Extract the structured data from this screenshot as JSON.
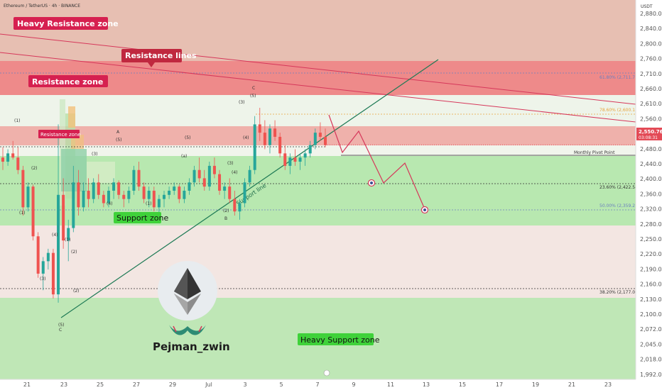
{
  "header": {
    "symbol": "Ethereum / TetherUS · 4h · BINANCE",
    "currency": "USDT"
  },
  "price_axis": {
    "ticks": [
      "2,880.00",
      "2,840.00",
      "2,800.00",
      "2,760.00",
      "2,710.00",
      "2,660.00",
      "2,610.00",
      "2,560.00",
      "2,520.00",
      "2,480.00",
      "2,440.00",
      "2,400.00",
      "2,360.00",
      "2,320.00",
      "2,280.00",
      "2,250.00",
      "2,220.00",
      "2,190.00",
      "2,160.00",
      "2,130.00",
      "2,100.00",
      "2,072.00",
      "2,045.00",
      "2,018.00",
      "1,992.00"
    ],
    "current_price": "2,550.76",
    "countdown": "03:08:31"
  },
  "time_axis": {
    "ticks": [
      "21",
      "23",
      "25",
      "27",
      "29",
      "Jul",
      "3",
      "5",
      "7",
      "9",
      "11",
      "13",
      "15",
      "17",
      "19",
      "21",
      "23"
    ]
  },
  "zones": {
    "heavy_resistance": "Heavy Resistance zone",
    "resistance_lines": "Resistance lines",
    "resistance": "Resistance zone",
    "resistance_small": "Resistance zone",
    "support": "Support zone",
    "heavy_support": "Heavy Support zone",
    "support_line": "Support line",
    "monthly_pivot": "Monthly Pivot Point"
  },
  "fib_levels": [
    {
      "label": "61.80% (2,711.75)",
      "price": 2711.75,
      "color": "#6b7fbf"
    },
    {
      "label": "78.60% (2,600.13)",
      "price": 2600.13,
      "color": "#e8a33b"
    },
    {
      "label": "23.60% (2,422.54)",
      "price": 2422.54,
      "color": "#333333"
    },
    {
      "label": "50.00% (2,359.21)",
      "price": 2359.21,
      "color": "#6b7fbf"
    },
    {
      "label": "38.20% (2,177.07)",
      "price": 2177.07,
      "color": "#333333"
    }
  ],
  "wave_labels": [
    "(1)",
    "(2)",
    "(3)",
    "(4)",
    "(5)",
    "(1)",
    "(2)",
    "(3)",
    "(4)",
    "(5)",
    "(1)",
    "(2)",
    "(3)",
    "(4)",
    "(5)",
    "(3)",
    "(4)",
    "(5)",
    "(1)",
    "(2)",
    "(3)",
    "(4)",
    "(5)",
    "A",
    "B",
    "C",
    "(5)",
    "(a)",
    "(b)",
    "(c)",
    "(d)",
    "(e)"
  ],
  "brand": {
    "author": "Pejman_zwin",
    "logo_colors": {
      "circle": "#e8ecef",
      "diamond_top": "#343434",
      "diamond_bottom": "#8c8c8c",
      "moustache": "#2e8b74",
      "accent": "#d6375a"
    }
  },
  "colors": {
    "up": "#26a69a",
    "down": "#ef5350",
    "heavy_resistance": "#e7bfb2",
    "resistance": "#ee8a8a",
    "support": "#b8e8b0",
    "heavy_support": "#bfe7b6",
    "support_line": "#1e7a55",
    "resistance_line": "#d6375a",
    "label_red": "#d62050",
    "label_green": "#3fd23a"
  },
  "chart_data": {
    "type": "candlestick",
    "title": "Ethereum / TetherUS · 4h · BINANCE",
    "x_axis": {
      "type": "date",
      "ticks": [
        "21",
        "23",
        "25",
        "27",
        "29",
        "Jul",
        "3",
        "5",
        "7",
        "9",
        "11",
        "13",
        "15",
        "17",
        "19",
        "21",
        "23"
      ]
    },
    "y_axis": {
      "unit": "USDT",
      "range": [
        1985,
        2900
      ]
    },
    "zones": [
      {
        "name": "Heavy Resistance zone",
        "from": 2745,
        "to": 2900
      },
      {
        "name": "Resistance zone",
        "from": 2650,
        "to": 2745
      },
      {
        "name": "Resistance zone",
        "from": 2525,
        "to": 2585
      },
      {
        "name": "Support zone",
        "from": 2325,
        "to": 2495
      },
      {
        "name": "Heavy Support zone",
        "from": 1985,
        "to": 2160
      }
    ],
    "last_price": 2550.76,
    "horizontal_levels": [
      {
        "name": "Monthly Pivot Point",
        "price": 2495
      }
    ],
    "projection_targets": [
      2422.54,
      2359.21
    ],
    "candles": [
      [
        2520,
        2545,
        2490,
        2510
      ],
      [
        2510,
        2540,
        2500,
        2530
      ],
      [
        2530,
        2560,
        2515,
        2520
      ],
      [
        2520,
        2545,
        2480,
        2490
      ],
      [
        2490,
        2500,
        2380,
        2400
      ],
      [
        2400,
        2460,
        2390,
        2450
      ],
      [
        2450,
        2455,
        2320,
        2330
      ],
      [
        2330,
        2340,
        2230,
        2240
      ],
      [
        2240,
        2280,
        2200,
        2270
      ],
      [
        2270,
        2300,
        2250,
        2290
      ],
      [
        2290,
        2300,
        2180,
        2190
      ],
      [
        2190,
        2600,
        2170,
        2430
      ],
      [
        2430,
        2470,
        2300,
        2320
      ],
      [
        2320,
        2370,
        2270,
        2350
      ],
      [
        2350,
        2500,
        2340,
        2460
      ],
      [
        2460,
        2490,
        2380,
        2400
      ],
      [
        2400,
        2460,
        2390,
        2440
      ],
      [
        2440,
        2470,
        2400,
        2420
      ],
      [
        2420,
        2470,
        2410,
        2460
      ],
      [
        2460,
        2480,
        2420,
        2430
      ],
      [
        2430,
        2440,
        2400,
        2410
      ],
      [
        2410,
        2450,
        2400,
        2440
      ],
      [
        2440,
        2470,
        2420,
        2460
      ],
      [
        2460,
        2465,
        2420,
        2430
      ],
      [
        2430,
        2440,
        2400,
        2420
      ],
      [
        2420,
        2450,
        2410,
        2440
      ],
      [
        2440,
        2500,
        2430,
        2490
      ],
      [
        2490,
        2510,
        2440,
        2450
      ],
      [
        2450,
        2460,
        2410,
        2420
      ],
      [
        2420,
        2450,
        2400,
        2440
      ],
      [
        2440,
        2450,
        2390,
        2400
      ],
      [
        2400,
        2430,
        2380,
        2420
      ],
      [
        2420,
        2440,
        2400,
        2430
      ],
      [
        2430,
        2450,
        2420,
        2440
      ],
      [
        2440,
        2460,
        2430,
        2450
      ],
      [
        2450,
        2455,
        2410,
        2420
      ],
      [
        2420,
        2450,
        2410,
        2440
      ],
      [
        2440,
        2470,
        2430,
        2460
      ],
      [
        2460,
        2500,
        2450,
        2490
      ],
      [
        2490,
        2520,
        2460,
        2470
      ],
      [
        2470,
        2490,
        2440,
        2450
      ],
      [
        2450,
        2510,
        2440,
        2500
      ],
      [
        2500,
        2520,
        2470,
        2480
      ],
      [
        2480,
        2490,
        2430,
        2440
      ],
      [
        2440,
        2460,
        2420,
        2450
      ],
      [
        2450,
        2470,
        2410,
        2420
      ],
      [
        2420,
        2440,
        2380,
        2390
      ],
      [
        2390,
        2420,
        2370,
        2410
      ],
      [
        2410,
        2470,
        2400,
        2460
      ],
      [
        2460,
        2500,
        2450,
        2490
      ],
      [
        2490,
        2620,
        2480,
        2600
      ],
      [
        2600,
        2640,
        2560,
        2580
      ],
      [
        2580,
        2610,
        2540,
        2550
      ],
      [
        2550,
        2600,
        2530,
        2590
      ],
      [
        2590,
        2610,
        2560,
        2570
      ],
      [
        2570,
        2580,
        2520,
        2530
      ],
      [
        2530,
        2550,
        2490,
        2500
      ],
      [
        2500,
        2530,
        2480,
        2520
      ],
      [
        2520,
        2540,
        2500,
        2510
      ],
      [
        2510,
        2530,
        2490,
        2520
      ],
      [
        2520,
        2540,
        2500,
        2530
      ],
      [
        2530,
        2560,
        2520,
        2550
      ],
      [
        2550,
        2590,
        2540,
        2580
      ],
      [
        2580,
        2605,
        2560,
        2570
      ],
      [
        2570,
        2590,
        2545,
        2550
      ]
    ]
  }
}
